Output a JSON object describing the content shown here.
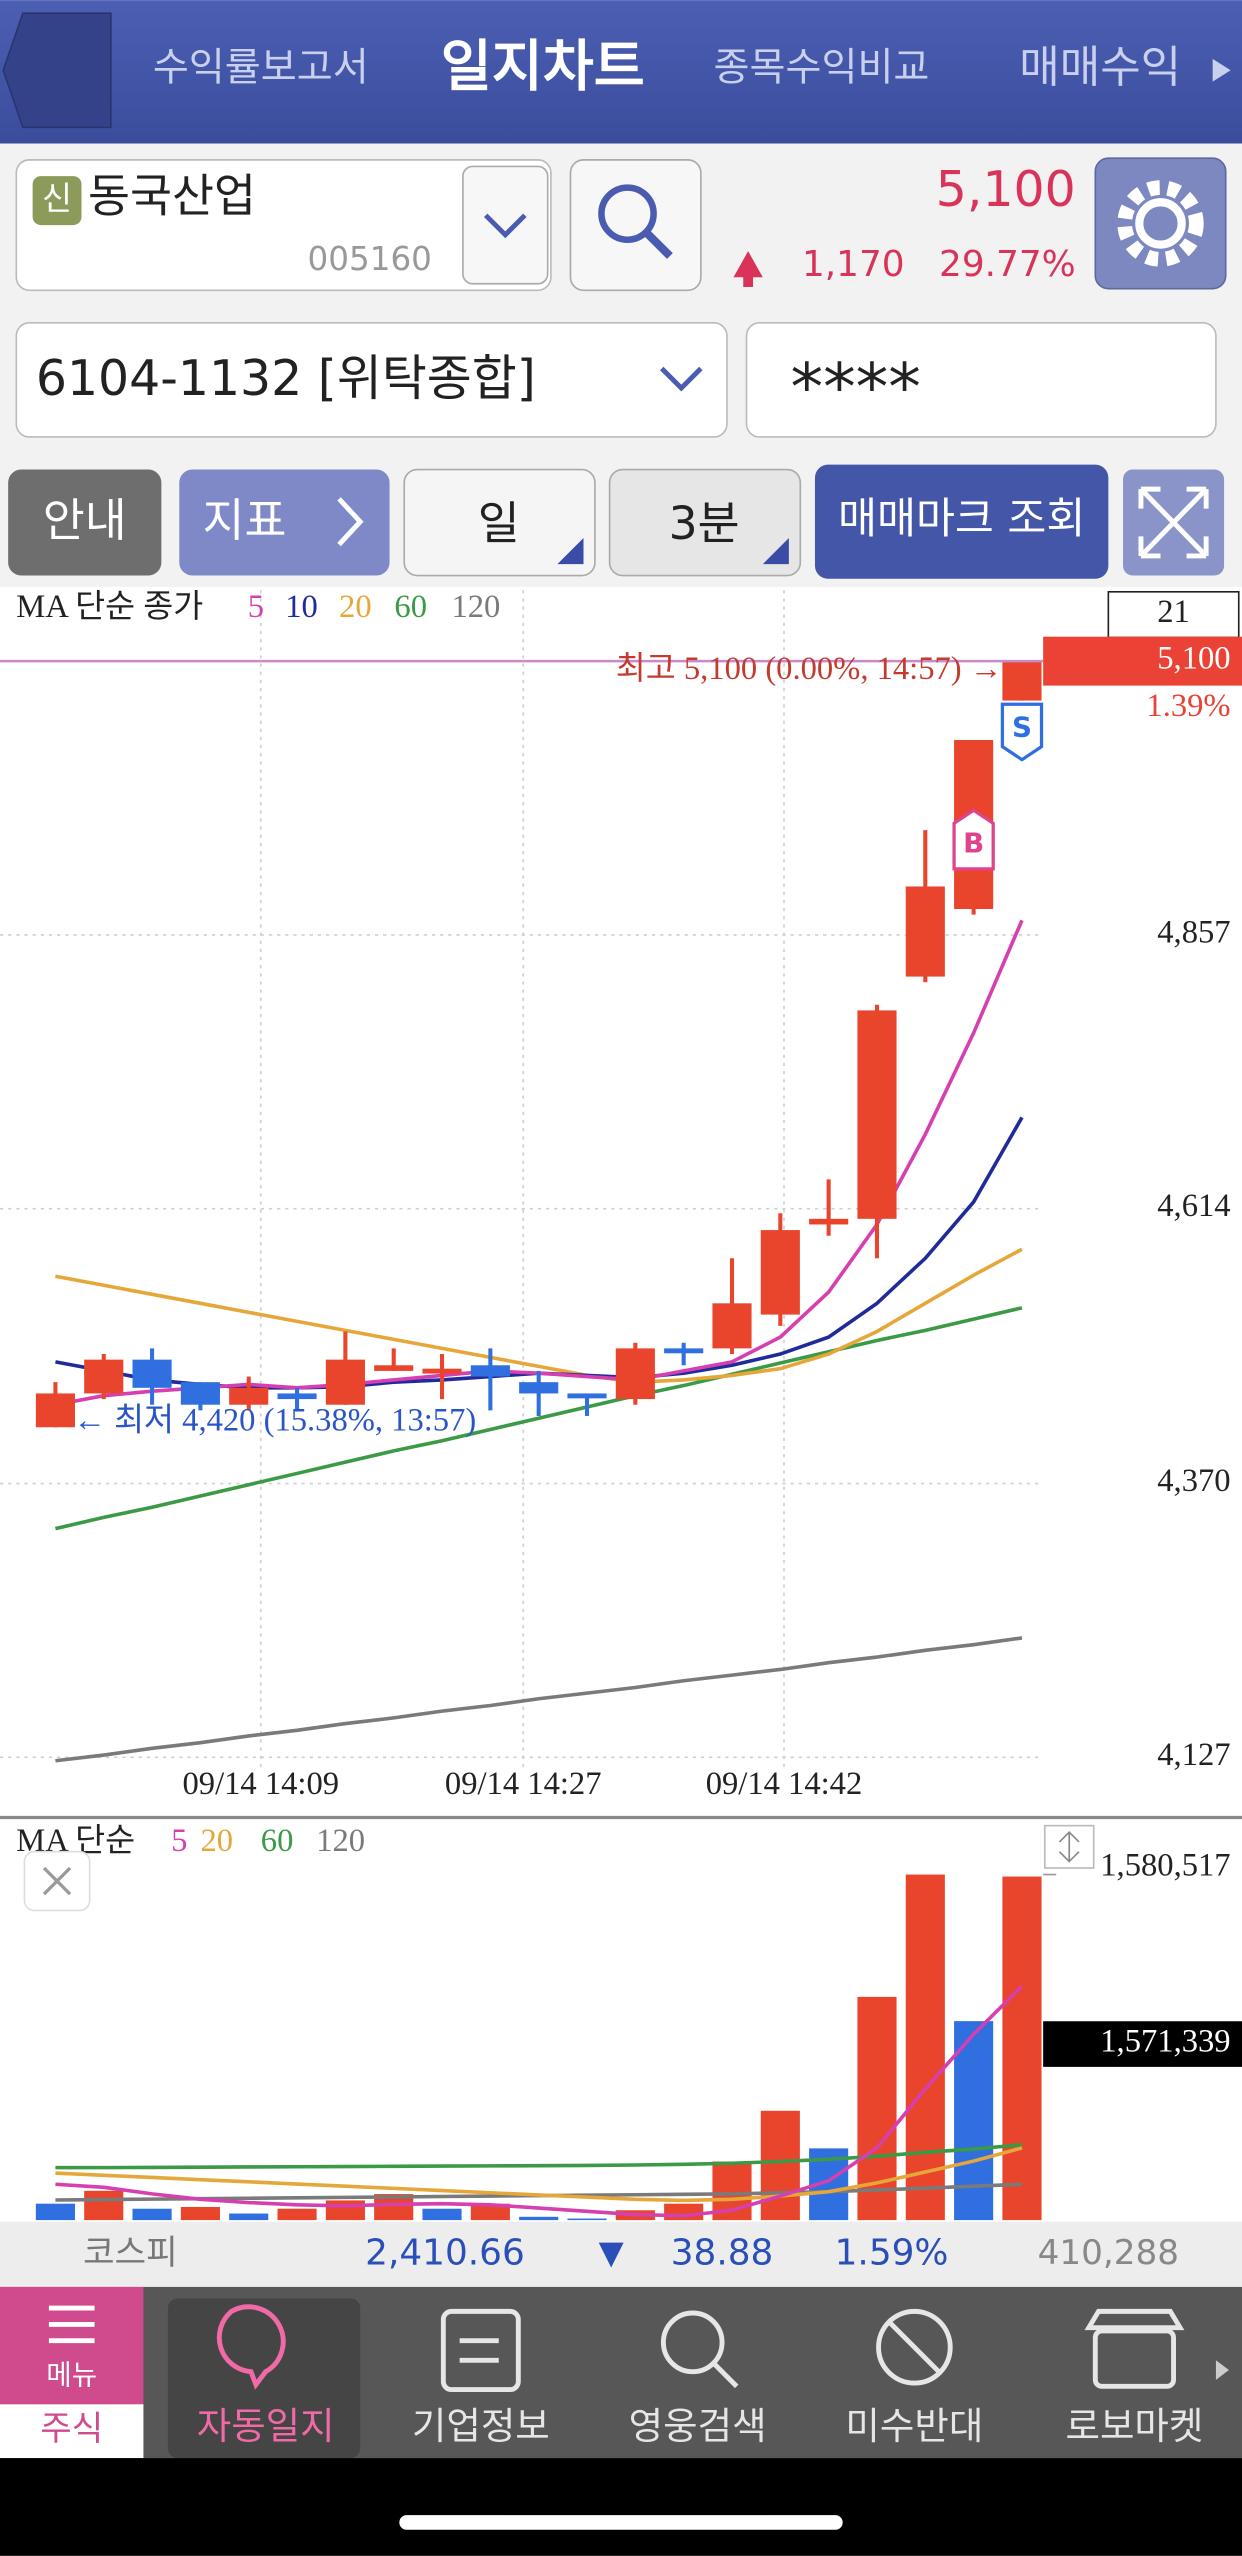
{
  "header": {
    "tabs": [
      "수익률보고서",
      "일지차트",
      "종목수익비교",
      "매매수익"
    ]
  },
  "stock": {
    "badge": "신",
    "name": "동국산업",
    "code": "005160",
    "price": "5,100",
    "change": "1,170",
    "change_rate": "29.77%"
  },
  "account": {
    "number": "6104-1132 [위탁종합]",
    "password": "****"
  },
  "toolbar": [
    "안내",
    "지표",
    "일",
    "3분",
    "매매마크 조회"
  ],
  "chart_data": [
    {
      "type": "candlestick",
      "legend_title": "MA 단순 종가",
      "count_label": "21",
      "price_label": "5,100",
      "rate_label": "1.39%",
      "high_annotation": "최고 5,100 (0.00%, 14:57) →",
      "low_annotation": "← 최저 4,420 (15.38%, 13:57)",
      "buy_marker": "B",
      "sell_marker": "S",
      "x_labels": [
        "09/14 14:09",
        "09/14 14:27",
        "09/14 14:42"
      ],
      "up_color": "#e8452c",
      "down_color": "#2f6fe0",
      "grid": true,
      "ylim": [
        4117,
        5163
      ],
      "yticks": [
        {
          "value": 4127,
          "label": "4,127"
        },
        {
          "value": 4370,
          "label": "4,370"
        },
        {
          "value": 4614,
          "label": "4,614"
        },
        {
          "value": 4857,
          "label": "4,857"
        }
      ],
      "open": [
        4420,
        4450,
        4480,
        4460,
        4440,
        4450,
        4440,
        4470,
        4470,
        4475,
        4460,
        4450,
        4445,
        4490,
        4490,
        4520,
        4600,
        4605,
        4820,
        4880,
        5065
      ],
      "high": [
        4460,
        4485,
        4490,
        4460,
        4465,
        4455,
        4505,
        4490,
        4485,
        4490,
        4470,
        4450,
        4495,
        4495,
        4570,
        4610,
        4640,
        4795,
        4950,
        5030,
        5100
      ],
      "low": [
        4420,
        4445,
        4440,
        4435,
        4435,
        4435,
        4440,
        4470,
        4445,
        4435,
        4430,
        4430,
        4440,
        4475,
        4485,
        4510,
        4590,
        4570,
        4815,
        4875,
        5065
      ],
      "close": [
        4450,
        4480,
        4455,
        4440,
        4455,
        4445,
        4480,
        4475,
        4472,
        4465,
        4450,
        4448,
        4490,
        4488,
        4530,
        4595,
        4605,
        4790,
        4900,
        5030,
        5100
      ],
      "series": [
        {
          "name": "5",
          "color": "#d63fb0",
          "values": [
            4440,
            4448,
            4452,
            4455,
            4458,
            4455,
            4458,
            4462,
            4466,
            4470,
            4468,
            4465,
            4462,
            4470,
            4478,
            4500,
            4540,
            4600,
            4680,
            4770,
            4870
          ]
        },
        {
          "name": "10",
          "color": "#1f2a9b",
          "values": [
            4478,
            4470,
            4462,
            4458,
            4455,
            4455,
            4456,
            4460,
            4462,
            4465,
            4468,
            4466,
            4464,
            4468,
            4475,
            4485,
            4500,
            4530,
            4570,
            4620,
            4695
          ]
        },
        {
          "name": "20",
          "color": "#e6a73a",
          "values": [
            4554,
            4546,
            4538,
            4530,
            4522,
            4514,
            4506,
            4498,
            4490,
            4482,
            4474,
            4466,
            4460,
            4462,
            4466,
            4472,
            4485,
            4505,
            4530,
            4555,
            4578
          ]
        },
        {
          "name": "60",
          "color": "#3a9a45",
          "values": [
            4330,
            4340,
            4349,
            4359,
            4369,
            4379,
            4389,
            4399,
            4408,
            4418,
            4428,
            4438,
            4448,
            4457,
            4467,
            4477,
            4487,
            4497,
            4506,
            4516,
            4526
          ]
        },
        {
          "name": "120",
          "color": "#7a7a7a",
          "values": [
            4124,
            4129,
            4135,
            4140,
            4146,
            4151,
            4157,
            4162,
            4168,
            4173,
            4179,
            4184,
            4189,
            4195,
            4200,
            4205,
            4211,
            4216,
            4222,
            4227,
            4233
          ]
        }
      ]
    },
    {
      "type": "bar",
      "legend_title": "MA 단순",
      "last_value_label": "1,571,339",
      "ylim": [
        0,
        1580517
      ],
      "yticks": [
        {
          "value": 1580517,
          "label": "1,580,517"
        }
      ],
      "values": [
        75000,
        134000,
        52000,
        60000,
        30000,
        52000,
        90000,
        119000,
        52000,
        75000,
        15000,
        7000,
        45000,
        75000,
        268000,
        500000,
        328000,
        1021000,
        1580517,
        910000,
        1571339
      ],
      "colors": [
        "#2f6fe0",
        "#e8452c",
        "#2f6fe0",
        "#e8452c",
        "#2f6fe0",
        "#e8452c",
        "#e8452c",
        "#e8452c",
        "#2f6fe0",
        "#e8452c",
        "#2f6fe0",
        "#2f6fe0",
        "#e8452c",
        "#e8452c",
        "#e8452c",
        "#e8452c",
        "#2f6fe0",
        "#e8452c",
        "#e8452c",
        "#2f6fe0",
        "#e8452c"
      ],
      "series": [
        {
          "name": "5",
          "color": "#d63fb0",
          "values": [
            164000,
            150000,
            120000,
            95000,
            80000,
            70000,
            65000,
            72000,
            75000,
            70000,
            55000,
            40000,
            25000,
            20000,
            45000,
            110000,
            180000,
            330000,
            600000,
            850000,
            1070000
          ]
        },
        {
          "name": "20",
          "color": "#e6a73a",
          "values": [
            215000,
            205000,
            195000,
            185000,
            175000,
            165000,
            155000,
            145000,
            135000,
            125000,
            115000,
            105000,
            95000,
            90000,
            95000,
            110000,
            130000,
            170000,
            220000,
            270000,
            330000
          ]
        },
        {
          "name": "60",
          "color": "#3a9a45",
          "values": [
            240000,
            240000,
            241000,
            242000,
            243000,
            244000,
            245000,
            246000,
            247000,
            248000,
            249000,
            250000,
            252000,
            255000,
            260000,
            268000,
            278000,
            292000,
            310000,
            325000,
            345000
          ]
        },
        {
          "name": "120",
          "color": "#7a7a7a",
          "values": [
            92000,
            94000,
            96000,
            98000,
            100000,
            102000,
            104000,
            106000,
            108000,
            110000,
            112000,
            114000,
            116000,
            118000,
            120000,
            125000,
            130000,
            138000,
            146000,
            155000,
            164000
          ]
        }
      ]
    }
  ],
  "index_bar": {
    "name": "코스피",
    "value": "2,410.66",
    "direction": "▼",
    "change": "38.88",
    "rate": "1.59%",
    "volume": "410,288"
  },
  "nav": {
    "menu": "메뉴",
    "section": "주식",
    "items": [
      "자동일지",
      "기업정보",
      "영웅검색",
      "미수반대",
      "로보마켓"
    ]
  }
}
